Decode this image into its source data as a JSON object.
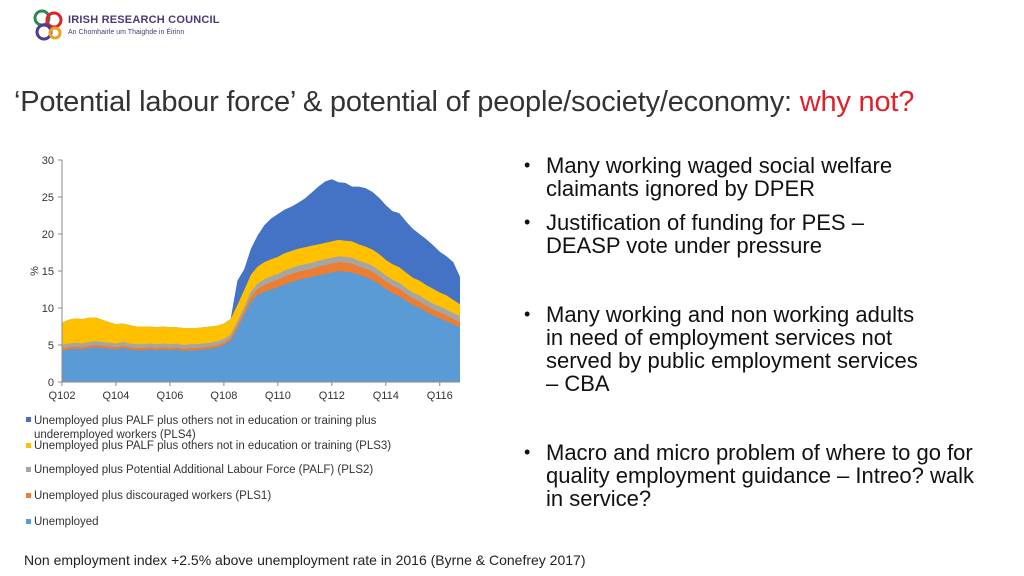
{
  "logo": {
    "name": "IRISH RESEARCH COUNCIL",
    "subtitle": "An Chomhairle um Thaighde in Éirinn",
    "icon": "irish-research-council-logo"
  },
  "title": {
    "main": "‘Potential labour force’ & potential of people/society/economy: ",
    "accent": "why not?",
    "accent_color": "#e0202a"
  },
  "bullets": [
    "Many  working waged social welfare claimants ignored by DPER",
    "Justification of funding for PES – DEASP vote under pressure",
    "Many working and non working adults in need of employment services not served by public employment services – CBA",
    "Macro and micro problem of where to go for quality employment guidance – Intreo? walk in service?"
  ],
  "footer": "Non employment index +2.5% above unemployment rate in 2016 (Byrne & Conefrey 2017)",
  "chart_data": {
    "type": "area",
    "title": "",
    "xlabel": "",
    "ylabel": "%",
    "ylim": [
      0,
      30
    ],
    "yticks": [
      "0",
      "5",
      "10",
      "15",
      "20",
      "25",
      "30"
    ],
    "xticks": [
      "Q102",
      "Q104",
      "Q106",
      "Q108",
      "Q110",
      "Q112",
      "Q114",
      "Q116"
    ],
    "x": [
      "Q102",
      "Q202",
      "Q302",
      "Q402",
      "Q103",
      "Q203",
      "Q303",
      "Q403",
      "Q104",
      "Q204",
      "Q304",
      "Q404",
      "Q105",
      "Q205",
      "Q305",
      "Q405",
      "Q106",
      "Q206",
      "Q306",
      "Q406",
      "Q107",
      "Q207",
      "Q307",
      "Q407",
      "Q108",
      "Q208",
      "Q308",
      "Q408",
      "Q109",
      "Q209",
      "Q309",
      "Q409",
      "Q110",
      "Q210",
      "Q310",
      "Q410",
      "Q111",
      "Q211",
      "Q311",
      "Q411",
      "Q112",
      "Q212",
      "Q312",
      "Q412",
      "Q113",
      "Q213",
      "Q313",
      "Q413",
      "Q114",
      "Q214",
      "Q314",
      "Q414",
      "Q115",
      "Q215",
      "Q315",
      "Q415",
      "Q116",
      "Q216",
      "Q316",
      "Q416"
    ],
    "series": [
      {
        "name": "Unemployed",
        "color": "#5b9bd5",
        "values": [
          4.2,
          4.4,
          4.5,
          4.4,
          4.6,
          4.7,
          4.6,
          4.5,
          4.4,
          4.6,
          4.4,
          4.3,
          4.3,
          4.4,
          4.3,
          4.4,
          4.3,
          4.4,
          4.2,
          4.3,
          4.3,
          4.4,
          4.5,
          4.7,
          5.0,
          5.6,
          7.2,
          9.0,
          10.8,
          11.8,
          12.2,
          12.5,
          12.8,
          13.2,
          13.5,
          13.8,
          14.0,
          14.2,
          14.4,
          14.6,
          14.8,
          15.0,
          14.9,
          14.8,
          14.5,
          14.2,
          13.8,
          13.2,
          12.6,
          12.0,
          11.6,
          11.0,
          10.4,
          10.0,
          9.5,
          9.0,
          8.6,
          8.2,
          7.8,
          7.4
        ]
      },
      {
        "name": "Unemployed plus discouraged workers (PLS1)",
        "color": "#ed7d31",
        "values": [
          0.3,
          0.3,
          0.3,
          0.3,
          0.3,
          0.3,
          0.3,
          0.3,
          0.3,
          0.3,
          0.3,
          0.3,
          0.3,
          0.3,
          0.3,
          0.3,
          0.3,
          0.3,
          0.3,
          0.3,
          0.3,
          0.3,
          0.3,
          0.3,
          0.3,
          0.3,
          0.4,
          0.5,
          0.7,
          0.8,
          0.9,
          1.0,
          1.0,
          1.1,
          1.1,
          1.1,
          1.1,
          1.1,
          1.2,
          1.2,
          1.2,
          1.2,
          1.2,
          1.2,
          1.1,
          1.1,
          1.1,
          1.1,
          1.0,
          1.0,
          1.0,
          0.9,
          0.9,
          0.9,
          0.8,
          0.8,
          0.8,
          0.8,
          0.7,
          0.7
        ]
      },
      {
        "name": "Unemployed plus Potential Additional Labour Force (PALF) (PLS2)",
        "color": "#a5a5a5",
        "values": [
          0.5,
          0.5,
          0.5,
          0.5,
          0.5,
          0.5,
          0.5,
          0.5,
          0.5,
          0.5,
          0.5,
          0.5,
          0.5,
          0.5,
          0.5,
          0.5,
          0.5,
          0.5,
          0.5,
          0.5,
          0.5,
          0.5,
          0.5,
          0.5,
          0.5,
          0.5,
          0.6,
          0.6,
          0.7,
          0.7,
          0.8,
          0.8,
          0.8,
          0.8,
          0.8,
          0.8,
          0.8,
          0.8,
          0.8,
          0.8,
          0.8,
          0.8,
          0.8,
          0.8,
          0.8,
          0.8,
          0.8,
          0.8,
          0.8,
          0.8,
          0.8,
          0.8,
          0.8,
          0.8,
          0.8,
          0.8,
          0.8,
          0.8,
          0.8,
          0.8
        ]
      },
      {
        "name": "Unemployed plus PALF plus others not in education or training (PLS3)",
        "color": "#ffc000",
        "values": [
          3.0,
          3.2,
          3.3,
          3.3,
          3.3,
          3.2,
          3.0,
          2.8,
          2.6,
          2.5,
          2.5,
          2.4,
          2.4,
          2.3,
          2.3,
          2.3,
          2.3,
          2.2,
          2.3,
          2.2,
          2.2,
          2.2,
          2.2,
          2.1,
          2.1,
          2.1,
          2.2,
          2.3,
          2.3,
          2.3,
          2.3,
          2.3,
          2.3,
          2.3,
          2.3,
          2.3,
          2.3,
          2.3,
          2.2,
          2.2,
          2.2,
          2.2,
          2.2,
          2.2,
          2.2,
          2.2,
          2.2,
          2.2,
          2.1,
          2.1,
          2.1,
          2.1,
          2.0,
          2.0,
          2.0,
          2.0,
          1.9,
          1.9,
          1.8,
          1.6
        ]
      },
      {
        "name": "Unemployed plus PALF plus others not in education or training plus underemployed workers (PLS4)",
        "color": "#4472c4",
        "values": [
          0,
          0,
          0,
          0,
          0,
          0,
          0,
          0,
          0,
          0,
          0,
          0,
          0,
          0,
          0,
          0,
          0,
          0,
          0,
          0,
          0,
          0,
          0,
          0,
          0,
          0,
          3.3,
          2.8,
          3.5,
          4.2,
          5.0,
          5.5,
          5.8,
          5.9,
          6.0,
          6.2,
          6.6,
          7.2,
          7.8,
          8.3,
          8.4,
          7.8,
          7.8,
          7.4,
          7.8,
          7.9,
          7.8,
          7.6,
          7.4,
          7.2,
          7.3,
          6.9,
          6.6,
          6.3,
          6.2,
          5.9,
          5.5,
          5.3,
          5.1,
          3.7
        ]
      }
    ],
    "legend": [
      "Unemployed plus PALF plus others not in education or training plus underemployed workers (PLS4)",
      "Unemployed plus PALF plus others not in education or training (PLS3)",
      "Unemployed plus Potential Additional Labour Force (PALF) (PLS2)",
      "Unemployed plus discouraged workers (PLS1)",
      "Unemployed"
    ],
    "legend_colors": [
      "#4472c4",
      "#ffc000",
      "#a5a5a5",
      "#ed7d31",
      "#5b9bd5"
    ]
  }
}
